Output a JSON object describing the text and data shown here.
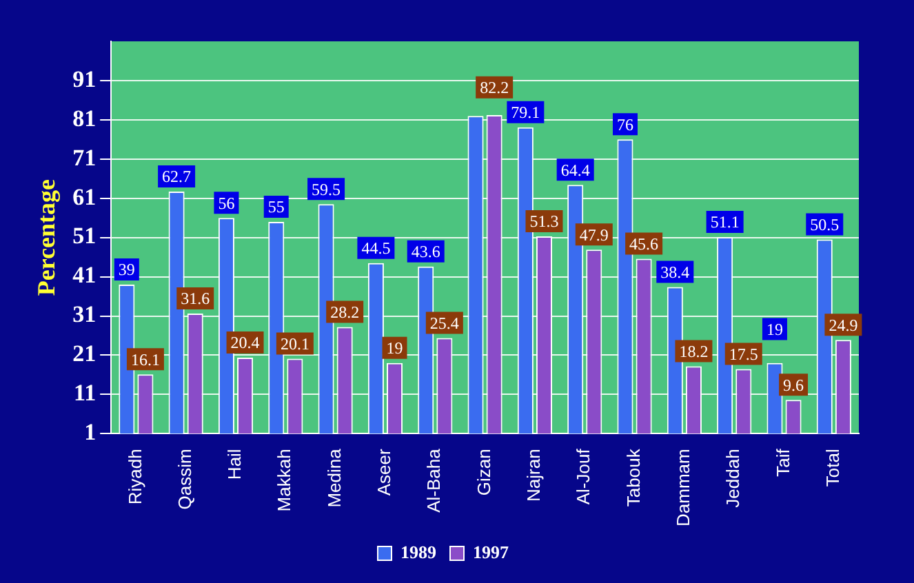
{
  "chart_data": {
    "type": "bar",
    "ylabel": "Percentage",
    "categories": [
      "Riyadh",
      "Qassim",
      "Hail",
      "Makkah",
      "Medina",
      "Aseer",
      "Al-Baha",
      "Gizan",
      "Najran",
      "Al-Jouf",
      "Tabouk",
      "Dammam",
      "Jeddah",
      "Taif",
      "Total"
    ],
    "series": [
      {
        "name": "1989",
        "color": "#3a6cf0",
        "values": [
          39,
          62.7,
          56,
          55,
          59.5,
          44.5,
          43.6,
          82,
          79.1,
          64.4,
          76,
          38.4,
          51.1,
          19,
          50.5
        ],
        "value_labels": [
          "39",
          "62.7",
          "56",
          "55",
          "59.5",
          "44.5",
          "43.6",
          null,
          "79.1",
          "64.4",
          "76",
          "38.4",
          "51.1",
          "19",
          "50.5"
        ]
      },
      {
        "name": "1997",
        "color": "#8a4cc8",
        "values": [
          16.1,
          31.6,
          20.4,
          20.1,
          28.2,
          19,
          25.4,
          82.2,
          51.3,
          47.9,
          45.6,
          18.2,
          17.5,
          9.6,
          24.9
        ],
        "value_labels": [
          "16.1",
          "31.6",
          "20.4",
          "20.1",
          "28.2",
          "19",
          "25.4",
          "82.2",
          "51.3",
          "47.9",
          "45.6",
          "18.2",
          "17.5",
          "9.6",
          "24.9"
        ]
      }
    ],
    "ylim": [
      1,
      101
    ],
    "yticks": [
      1,
      11,
      21,
      31,
      41,
      51,
      61,
      71,
      81,
      91
    ],
    "grid": "y",
    "legend": "bottom"
  }
}
